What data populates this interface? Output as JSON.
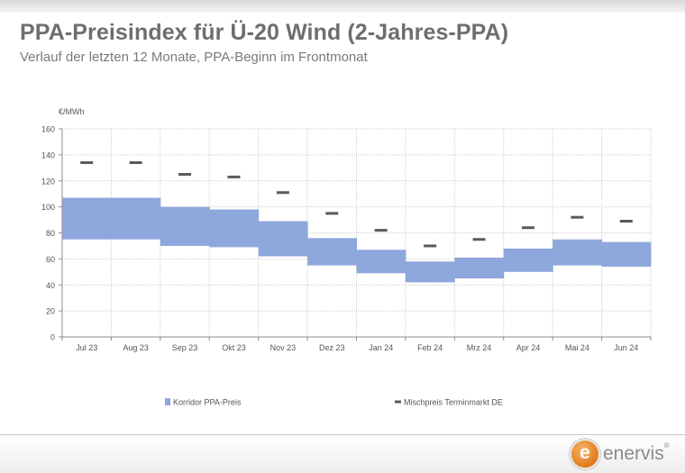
{
  "header": {
    "title": "PPA-Preisindex für Ü-20 Wind (2-Jahres-PPA)",
    "subtitle": "Verlauf der letzten 12 Monate, PPA-Beginn im Frontmonat"
  },
  "branding": {
    "logo_letter": "e",
    "logo_text": "enervis",
    "logo_mark": "®"
  },
  "colors": {
    "corridor": "#8EA7DC",
    "marker": "#5a5a5a",
    "grid": "#cfcfcf",
    "accent": "#E07A1A"
  },
  "chart_data": {
    "type": "bar",
    "unit_label": "€/MWh",
    "categories": [
      "Jul 23",
      "Aug 23",
      "Sep 23",
      "Okt 23",
      "Nov 23",
      "Dez 23",
      "Jan 24",
      "Feb 24",
      "Mrz 24",
      "Apr 24",
      "Mai 24",
      "Jun 24"
    ],
    "ylim": [
      0,
      160
    ],
    "yticks": [
      0,
      20,
      40,
      60,
      80,
      100,
      120,
      140,
      160
    ],
    "grid": true,
    "legend_position": "bottom",
    "series": [
      {
        "name": "Korridor PPA-Preis",
        "kind": "range",
        "low": [
          75,
          75,
          70,
          69,
          62,
          55,
          49,
          42,
          45,
          50,
          55,
          54
        ],
        "high": [
          107,
          107,
          100,
          98,
          89,
          76,
          67,
          58,
          61,
          68,
          75,
          73
        ]
      },
      {
        "name": "Mischpreis Terminmarkt DE",
        "kind": "marker",
        "values": [
          134,
          134,
          125,
          123,
          111,
          95,
          82,
          70,
          75,
          84,
          92,
          89
        ]
      }
    ]
  }
}
